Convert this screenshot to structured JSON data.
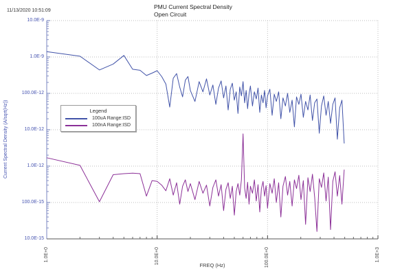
{
  "window": {
    "timestamp": "11/13/2020 10:51:09"
  },
  "chart_data": {
    "type": "line",
    "title": "PMU Current Spectral Density",
    "subtitle": "Open Circuit",
    "xlabel": "FREQ (Hz)",
    "ylabel": "Current Spectral Density (A/sqrt(Hz))",
    "x_scale": "log",
    "y_scale": "log",
    "xlim": [
      1,
      1000
    ],
    "ylim": [
      1e-14,
      1e-08
    ],
    "grid": "dotted",
    "x_ticks": [
      {
        "value": 1,
        "label": "1.0E+0"
      },
      {
        "value": 10,
        "label": "10.0E+0"
      },
      {
        "value": 100,
        "label": "100.0E+0"
      },
      {
        "value": 1000,
        "label": "1.0E+3"
      }
    ],
    "y_ticks": [
      {
        "value": 1e-08,
        "label": "10.0E-9"
      },
      {
        "value": 1e-09,
        "label": "1.0E-9"
      },
      {
        "value": 1e-10,
        "label": "100.0E-12"
      },
      {
        "value": 1e-11,
        "label": "10.0E-12"
      },
      {
        "value": 1e-12,
        "label": "1.0E-12"
      },
      {
        "value": 1e-13,
        "label": "100.0E-15"
      },
      {
        "value": 1e-14,
        "label": "10.0E-15"
      }
    ],
    "legend": {
      "title": "Legend",
      "position": "inside-left",
      "entries": [
        {
          "label": "100uA Range:ISD",
          "color": "#4052A8"
        },
        {
          "label": "100nA Range:ISD",
          "color": "#8B2F97"
        }
      ]
    },
    "axis_colors": {
      "y_labels": "#4553B0",
      "x_labels": "#4a4a4a"
    },
    "series": [
      {
        "name": "100uA Range:ISD",
        "color": "#4052A8",
        "points": [
          [
            1,
            1.4e-09
          ],
          [
            2,
            1.05e-09
          ],
          [
            3,
            4.4e-10
          ],
          [
            4,
            6.4e-10
          ],
          [
            5,
            1.1e-09
          ],
          [
            6,
            4.6e-10
          ],
          [
            7,
            4.3e-10
          ],
          [
            8,
            3.1e-10
          ],
          [
            9,
            3.6e-10
          ],
          [
            10,
            4.2e-10
          ],
          [
            11,
            2.9e-10
          ],
          [
            12,
            1.8e-10
          ],
          [
            13,
            4.2e-11
          ],
          [
            14,
            2.6e-10
          ],
          [
            15,
            3.5e-10
          ],
          [
            16,
            1.5e-10
          ],
          [
            17,
            8e-11
          ],
          [
            18,
            2.3e-10
          ],
          [
            19,
            2.9e-10
          ],
          [
            20,
            1.2e-10
          ],
          [
            22,
            6e-11
          ],
          [
            24,
            2.1e-10
          ],
          [
            26,
            1.1e-10
          ],
          [
            28,
            2.5e-10
          ],
          [
            30,
            9e-11
          ],
          [
            32,
            1.7e-10
          ],
          [
            34,
            5e-11
          ],
          [
            36,
            1.4e-10
          ],
          [
            38,
            2.2e-10
          ],
          [
            40,
            7.5e-11
          ],
          [
            42,
            1.6e-10
          ],
          [
            44,
            3.5e-11
          ],
          [
            46,
            1.3e-10
          ],
          [
            48,
            1.9e-10
          ],
          [
            50,
            6.5e-11
          ],
          [
            52,
            1.1e-10
          ],
          [
            54,
            2.8e-11
          ],
          [
            56,
            1.5e-10
          ],
          [
            58,
            8.5e-11
          ],
          [
            60,
            2.1e-10
          ],
          [
            62,
            5.5e-11
          ],
          [
            64,
            1.2e-10
          ],
          [
            66,
            3.8e-11
          ],
          [
            68,
            9.5e-11
          ],
          [
            70,
            1.6e-10
          ],
          [
            73,
            4.5e-11
          ],
          [
            76,
            1.1e-10
          ],
          [
            79,
            7e-11
          ],
          [
            82,
            1.4e-10
          ],
          [
            85,
            3e-11
          ],
          [
            88,
            9e-11
          ],
          [
            91,
            5.5e-11
          ],
          [
            94,
            1.2e-10
          ],
          [
            97,
            4e-11
          ],
          [
            100,
            8.5e-11
          ],
          [
            105,
            1.3e-10
          ],
          [
            110,
            2.5e-11
          ],
          [
            115,
            9.5e-11
          ],
          [
            120,
            6e-11
          ],
          [
            126,
            1.1e-10
          ],
          [
            132,
            2e-11
          ],
          [
            138,
            7.5e-11
          ],
          [
            145,
            4.5e-11
          ],
          [
            152,
            1e-10
          ],
          [
            159,
            3e-11
          ],
          [
            167,
            6.5e-11
          ],
          [
            175,
            1.2e-11
          ],
          [
            183,
            8e-11
          ],
          [
            192,
            5e-11
          ],
          [
            201,
            9.5e-11
          ],
          [
            211,
            2.2e-11
          ],
          [
            221,
            6e-11
          ],
          [
            232,
            3.5e-11
          ],
          [
            243,
            9e-11
          ],
          [
            255,
            1.8e-11
          ],
          [
            267,
            5.5e-11
          ],
          [
            280,
            7e-11
          ],
          [
            294,
            8e-12
          ],
          [
            308,
            4.5e-11
          ],
          [
            323,
            8.5e-11
          ],
          [
            339,
            2.5e-11
          ],
          [
            355,
            6e-11
          ],
          [
            372,
            1.5e-11
          ],
          [
            390,
            5e-11
          ],
          [
            409,
            7.5e-11
          ],
          [
            429,
            5.5e-12
          ],
          [
            450,
            4e-11
          ],
          [
            472,
            6.5e-11
          ],
          [
            495,
            4.2e-12
          ]
        ]
      },
      {
        "name": "100nA Range:ISD",
        "color": "#8B2F97",
        "points": [
          [
            1,
            1.7e-12
          ],
          [
            2,
            1.05e-12
          ],
          [
            3,
            1.05e-13
          ],
          [
            4,
            5.8e-13
          ],
          [
            5,
            6.2e-13
          ],
          [
            6,
            6.4e-13
          ],
          [
            7,
            6.2e-13
          ],
          [
            8,
            1.5e-13
          ],
          [
            9,
            4e-13
          ],
          [
            10,
            3.8e-13
          ],
          [
            11,
            3e-13
          ],
          [
            12,
            2.1e-13
          ],
          [
            13,
            4.5e-13
          ],
          [
            14,
            1.6e-13
          ],
          [
            15,
            3.5e-13
          ],
          [
            16,
            9e-14
          ],
          [
            17,
            2.8e-13
          ],
          [
            18,
            4.2e-13
          ],
          [
            19,
            2e-13
          ],
          [
            20,
            3.3e-13
          ],
          [
            22,
            1.2e-13
          ],
          [
            24,
            3.8e-13
          ],
          [
            26,
            1.8e-13
          ],
          [
            28,
            3e-13
          ],
          [
            30,
            8e-14
          ],
          [
            32,
            2.6e-13
          ],
          [
            34,
            4.2e-13
          ],
          [
            36,
            1.5e-13
          ],
          [
            38,
            3.1e-13
          ],
          [
            40,
            6e-14
          ],
          [
            42,
            2.3e-13
          ],
          [
            44,
            3.5e-13
          ],
          [
            46,
            1.3e-13
          ],
          [
            48,
            2.8e-13
          ],
          [
            50,
            4.5e-14
          ],
          [
            52,
            2e-13
          ],
          [
            54,
            3.3e-13
          ],
          [
            56,
            1.6e-13
          ],
          [
            58,
            4.2e-13
          ],
          [
            60,
            7.7e-12
          ],
          [
            62,
            2.5e-13
          ],
          [
            64,
            1.3e-13
          ],
          [
            66,
            3.6e-13
          ],
          [
            68,
            9e-14
          ],
          [
            70,
            2.8e-13
          ],
          [
            73,
            1.8e-13
          ],
          [
            76,
            4.2e-13
          ],
          [
            79,
            1.1e-13
          ],
          [
            82,
            3.1e-13
          ],
          [
            85,
            5.5e-14
          ],
          [
            88,
            2.4e-13
          ],
          [
            91,
            3.8e-13
          ],
          [
            94,
            1.5e-13
          ],
          [
            97,
            2.9e-13
          ],
          [
            100,
            7e-14
          ],
          [
            105,
            3.3e-13
          ],
          [
            110,
            1.8e-13
          ],
          [
            115,
            4.5e-13
          ],
          [
            120,
            1e-13
          ],
          [
            126,
            3.5e-13
          ],
          [
            132,
            4e-14
          ],
          [
            138,
            2.8e-13
          ],
          [
            145,
            5.2e-13
          ],
          [
            152,
            1.6e-13
          ],
          [
            159,
            3.8e-13
          ],
          [
            167,
            8e-14
          ],
          [
            175,
            4.2e-13
          ],
          [
            183,
            2.4e-13
          ],
          [
            192,
            5.6e-13
          ],
          [
            201,
            1.2e-13
          ],
          [
            211,
            4e-13
          ],
          [
            221,
            2.5e-14
          ],
          [
            232,
            4.8e-13
          ],
          [
            243,
            2e-13
          ],
          [
            255,
            6e-13
          ],
          [
            267,
            1.4e-13
          ],
          [
            280,
            1.6e-14
          ],
          [
            294,
            4.5e-13
          ],
          [
            308,
            2.6e-13
          ],
          [
            323,
            6.5e-13
          ],
          [
            339,
            1.1e-13
          ],
          [
            355,
            5e-13
          ],
          [
            372,
            1.8e-14
          ],
          [
            390,
            3.8e-13
          ],
          [
            409,
            7e-13
          ],
          [
            429,
            1.5e-13
          ],
          [
            450,
            5.5e-13
          ],
          [
            472,
            9e-14
          ],
          [
            495,
            8e-13
          ]
        ]
      }
    ]
  }
}
